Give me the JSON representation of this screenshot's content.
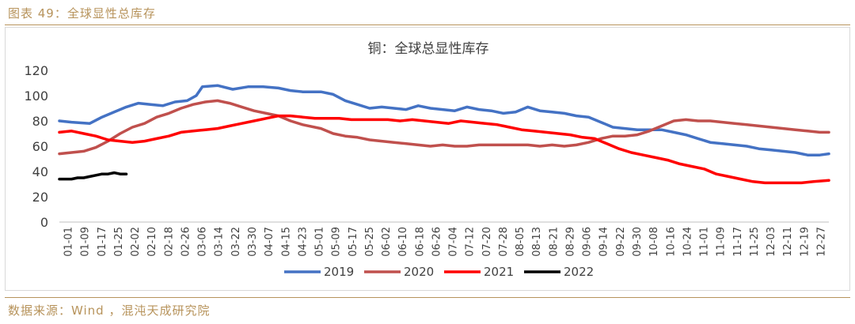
{
  "header": {
    "caption": "图表 49：全球显性总库存"
  },
  "footer": {
    "source": "数据来源：Wind ，混沌天成研究院"
  },
  "colors": {
    "caption": "#B7935B",
    "s2019": "#4472C4",
    "s2020": "#C0504D",
    "s2021": "#FF0000",
    "s2022": "#000000"
  },
  "chart_data": {
    "type": "line",
    "title": "铜：全球总显性库存",
    "xlabel": "",
    "ylabel": "",
    "ylim": [
      0,
      120
    ],
    "yticks": [
      0,
      20,
      40,
      60,
      80,
      100,
      120
    ],
    "grid": false,
    "legend": "bottom",
    "x_tick_labels": [
      "01-01",
      "01-09",
      "01-17",
      "01-25",
      "02-02",
      "02-10",
      "02-18",
      "02-26",
      "03-06",
      "03-14",
      "03-22",
      "03-30",
      "04-07",
      "04-15",
      "04-23",
      "05-01",
      "05-09",
      "05-17",
      "05-25",
      "06-02",
      "06-10",
      "06-18",
      "06-26",
      "07-04",
      "07-12",
      "07-20",
      "07-28",
      "08-05",
      "08-13",
      "08-21",
      "08-29",
      "09-06",
      "09-14",
      "09-22",
      "09-30",
      "10-08",
      "10-16",
      "10-24",
      "11-01",
      "11-09",
      "11-17",
      "11-25",
      "12-03",
      "12-11",
      "12-19",
      "12-27"
    ],
    "series": [
      {
        "name": "2019",
        "color": "#4472C4",
        "points": [
          [
            0,
            80
          ],
          [
            4,
            79
          ],
          [
            10,
            78
          ],
          [
            14,
            83
          ],
          [
            18,
            87
          ],
          [
            22,
            91
          ],
          [
            26,
            94
          ],
          [
            30,
            93
          ],
          [
            34,
            92
          ],
          [
            38,
            95
          ],
          [
            42,
            96
          ],
          [
            45,
            100
          ],
          [
            47,
            107
          ],
          [
            52,
            108
          ],
          [
            57,
            105
          ],
          [
            62,
            107
          ],
          [
            67,
            107
          ],
          [
            72,
            106
          ],
          [
            76,
            104
          ],
          [
            80,
            103
          ],
          [
            86,
            103
          ],
          [
            90,
            101
          ],
          [
            94,
            96
          ],
          [
            98,
            93
          ],
          [
            102,
            90
          ],
          [
            106,
            91
          ],
          [
            110,
            90
          ],
          [
            114,
            89
          ],
          [
            118,
            92
          ],
          [
            122,
            90
          ],
          [
            126,
            89
          ],
          [
            130,
            88
          ],
          [
            134,
            91
          ],
          [
            138,
            89
          ],
          [
            142,
            88
          ],
          [
            146,
            86
          ],
          [
            150,
            87
          ],
          [
            154,
            91
          ],
          [
            158,
            88
          ],
          [
            162,
            87
          ],
          [
            166,
            86
          ],
          [
            170,
            84
          ],
          [
            174,
            83
          ],
          [
            178,
            79
          ],
          [
            182,
            75
          ],
          [
            186,
            74
          ],
          [
            190,
            73
          ],
          [
            194,
            73
          ],
          [
            198,
            73
          ],
          [
            202,
            71
          ],
          [
            206,
            69
          ],
          [
            210,
            66
          ],
          [
            214,
            63
          ],
          [
            218,
            62
          ],
          [
            222,
            61
          ],
          [
            226,
            60
          ],
          [
            230,
            58
          ],
          [
            234,
            57
          ],
          [
            238,
            56
          ],
          [
            242,
            55
          ],
          [
            246,
            53
          ],
          [
            250,
            53
          ],
          [
            253,
            54
          ]
        ]
      },
      {
        "name": "2020",
        "color": "#C0504D",
        "points": [
          [
            0,
            54
          ],
          [
            4,
            55
          ],
          [
            8,
            56
          ],
          [
            12,
            59
          ],
          [
            16,
            64
          ],
          [
            20,
            70
          ],
          [
            24,
            75
          ],
          [
            28,
            78
          ],
          [
            32,
            83
          ],
          [
            36,
            86
          ],
          [
            40,
            90
          ],
          [
            44,
            93
          ],
          [
            48,
            95
          ],
          [
            52,
            96
          ],
          [
            56,
            94
          ],
          [
            60,
            91
          ],
          [
            64,
            88
          ],
          [
            68,
            86
          ],
          [
            72,
            84
          ],
          [
            76,
            80
          ],
          [
            80,
            77
          ],
          [
            86,
            74
          ],
          [
            90,
            70
          ],
          [
            94,
            68
          ],
          [
            98,
            67
          ],
          [
            102,
            65
          ],
          [
            106,
            64
          ],
          [
            110,
            63
          ],
          [
            114,
            62
          ],
          [
            118,
            61
          ],
          [
            122,
            60
          ],
          [
            126,
            61
          ],
          [
            130,
            60
          ],
          [
            134,
            60
          ],
          [
            138,
            61
          ],
          [
            142,
            61
          ],
          [
            146,
            61
          ],
          [
            150,
            61
          ],
          [
            154,
            61
          ],
          [
            158,
            60
          ],
          [
            162,
            61
          ],
          [
            166,
            60
          ],
          [
            170,
            61
          ],
          [
            174,
            63
          ],
          [
            178,
            66
          ],
          [
            182,
            68
          ],
          [
            186,
            68
          ],
          [
            190,
            69
          ],
          [
            194,
            72
          ],
          [
            198,
            76
          ],
          [
            202,
            80
          ],
          [
            206,
            81
          ],
          [
            210,
            80
          ],
          [
            214,
            80
          ],
          [
            218,
            79
          ],
          [
            222,
            78
          ],
          [
            226,
            77
          ],
          [
            230,
            76
          ],
          [
            234,
            75
          ],
          [
            238,
            74
          ],
          [
            242,
            73
          ],
          [
            246,
            72
          ],
          [
            250,
            71
          ],
          [
            253,
            71
          ]
        ]
      },
      {
        "name": "2021",
        "color": "#FF0000",
        "points": [
          [
            0,
            71
          ],
          [
            4,
            72
          ],
          [
            8,
            70
          ],
          [
            12,
            68
          ],
          [
            16,
            65
          ],
          [
            20,
            64
          ],
          [
            24,
            63
          ],
          [
            28,
            64
          ],
          [
            32,
            66
          ],
          [
            36,
            68
          ],
          [
            40,
            71
          ],
          [
            44,
            72
          ],
          [
            48,
            73
          ],
          [
            52,
            74
          ],
          [
            56,
            76
          ],
          [
            60,
            78
          ],
          [
            64,
            80
          ],
          [
            68,
            82
          ],
          [
            72,
            84
          ],
          [
            76,
            84
          ],
          [
            80,
            83
          ],
          [
            84,
            82
          ],
          [
            88,
            82
          ],
          [
            92,
            82
          ],
          [
            96,
            81
          ],
          [
            100,
            81
          ],
          [
            104,
            81
          ],
          [
            108,
            81
          ],
          [
            112,
            80
          ],
          [
            116,
            81
          ],
          [
            120,
            80
          ],
          [
            124,
            79
          ],
          [
            128,
            78
          ],
          [
            132,
            80
          ],
          [
            136,
            79
          ],
          [
            140,
            78
          ],
          [
            144,
            77
          ],
          [
            148,
            75
          ],
          [
            152,
            73
          ],
          [
            156,
            72
          ],
          [
            160,
            71
          ],
          [
            164,
            70
          ],
          [
            168,
            69
          ],
          [
            172,
            67
          ],
          [
            176,
            66
          ],
          [
            180,
            62
          ],
          [
            184,
            58
          ],
          [
            188,
            55
          ],
          [
            192,
            53
          ],
          [
            196,
            51
          ],
          [
            200,
            49
          ],
          [
            204,
            46
          ],
          [
            208,
            44
          ],
          [
            212,
            42
          ],
          [
            216,
            38
          ],
          [
            220,
            36
          ],
          [
            224,
            34
          ],
          [
            228,
            32
          ],
          [
            232,
            31
          ],
          [
            236,
            31
          ],
          [
            240,
            31
          ],
          [
            244,
            31
          ],
          [
            248,
            32
          ],
          [
            253,
            33
          ]
        ]
      },
      {
        "name": "2022",
        "color": "#000000",
        "points": [
          [
            0,
            34
          ],
          [
            2,
            34
          ],
          [
            4,
            34
          ],
          [
            6,
            35
          ],
          [
            8,
            35
          ],
          [
            10,
            36
          ],
          [
            12,
            37
          ],
          [
            14,
            38
          ],
          [
            16,
            38
          ],
          [
            18,
            39
          ],
          [
            20,
            38
          ],
          [
            22,
            38
          ]
        ]
      }
    ]
  }
}
